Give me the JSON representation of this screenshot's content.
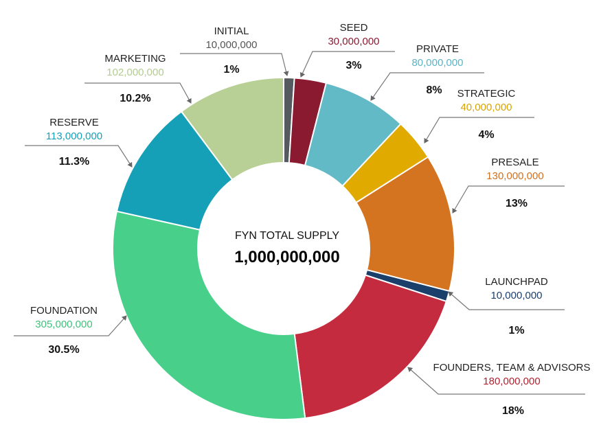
{
  "chart_data": {
    "type": "pie",
    "style": "donut",
    "center_title": "FYN TOTAL SUPPLY",
    "center_value": "1,000,000,000",
    "slices": [
      {
        "name": "INITIAL",
        "amount": "10,000,000",
        "pct_label": "1%",
        "value": 1,
        "color": "#555a5f",
        "label_color": "#555555"
      },
      {
        "name": "SEED",
        "amount": "30,000,000",
        "pct_label": "3%",
        "value": 3,
        "color": "#8a1a30",
        "label_color": "#8a1a30"
      },
      {
        "name": "PRIVATE",
        "amount": "80,000,000",
        "pct_label": "8%",
        "value": 8,
        "color": "#62bac7",
        "label_color": "#5ab4c4"
      },
      {
        "name": "STRATEGIC",
        "amount": "40,000,000",
        "pct_label": "4%",
        "value": 4,
        "color": "#e0aa00",
        "label_color": "#d9a300"
      },
      {
        "name": "PRESALE",
        "amount": "130,000,000",
        "pct_label": "13%",
        "value": 13,
        "color": "#d47420",
        "label_color": "#d07020"
      },
      {
        "name": "LAUNCHPAD",
        "amount": "10,000,000",
        "pct_label": "1%",
        "value": 1,
        "color": "#1b3f6b",
        "label_color": "#1b3f6b"
      },
      {
        "name": "FOUNDERS, TEAM & ADVISORS",
        "amount": "180,000,000",
        "pct_label": "18%",
        "value": 18,
        "color": "#c42b3e",
        "label_color": "#b0202f"
      },
      {
        "name": "FOUNDATION",
        "amount": "305,000,000",
        "pct_label": "30.5%",
        "value": 30.5,
        "color": "#48d08a",
        "label_color": "#3cc27a"
      },
      {
        "name": "RESERVE",
        "amount": "113,000,000",
        "pct_label": "11.3%",
        "value": 11.3,
        "color": "#16a0b7",
        "label_color": "#16a0b7"
      },
      {
        "name": "MARKETING",
        "amount": "102,000,000",
        "pct_label": "10.2%",
        "value": 10.2,
        "color": "#b8d096",
        "label_color": "#b3cc90"
      }
    ]
  }
}
